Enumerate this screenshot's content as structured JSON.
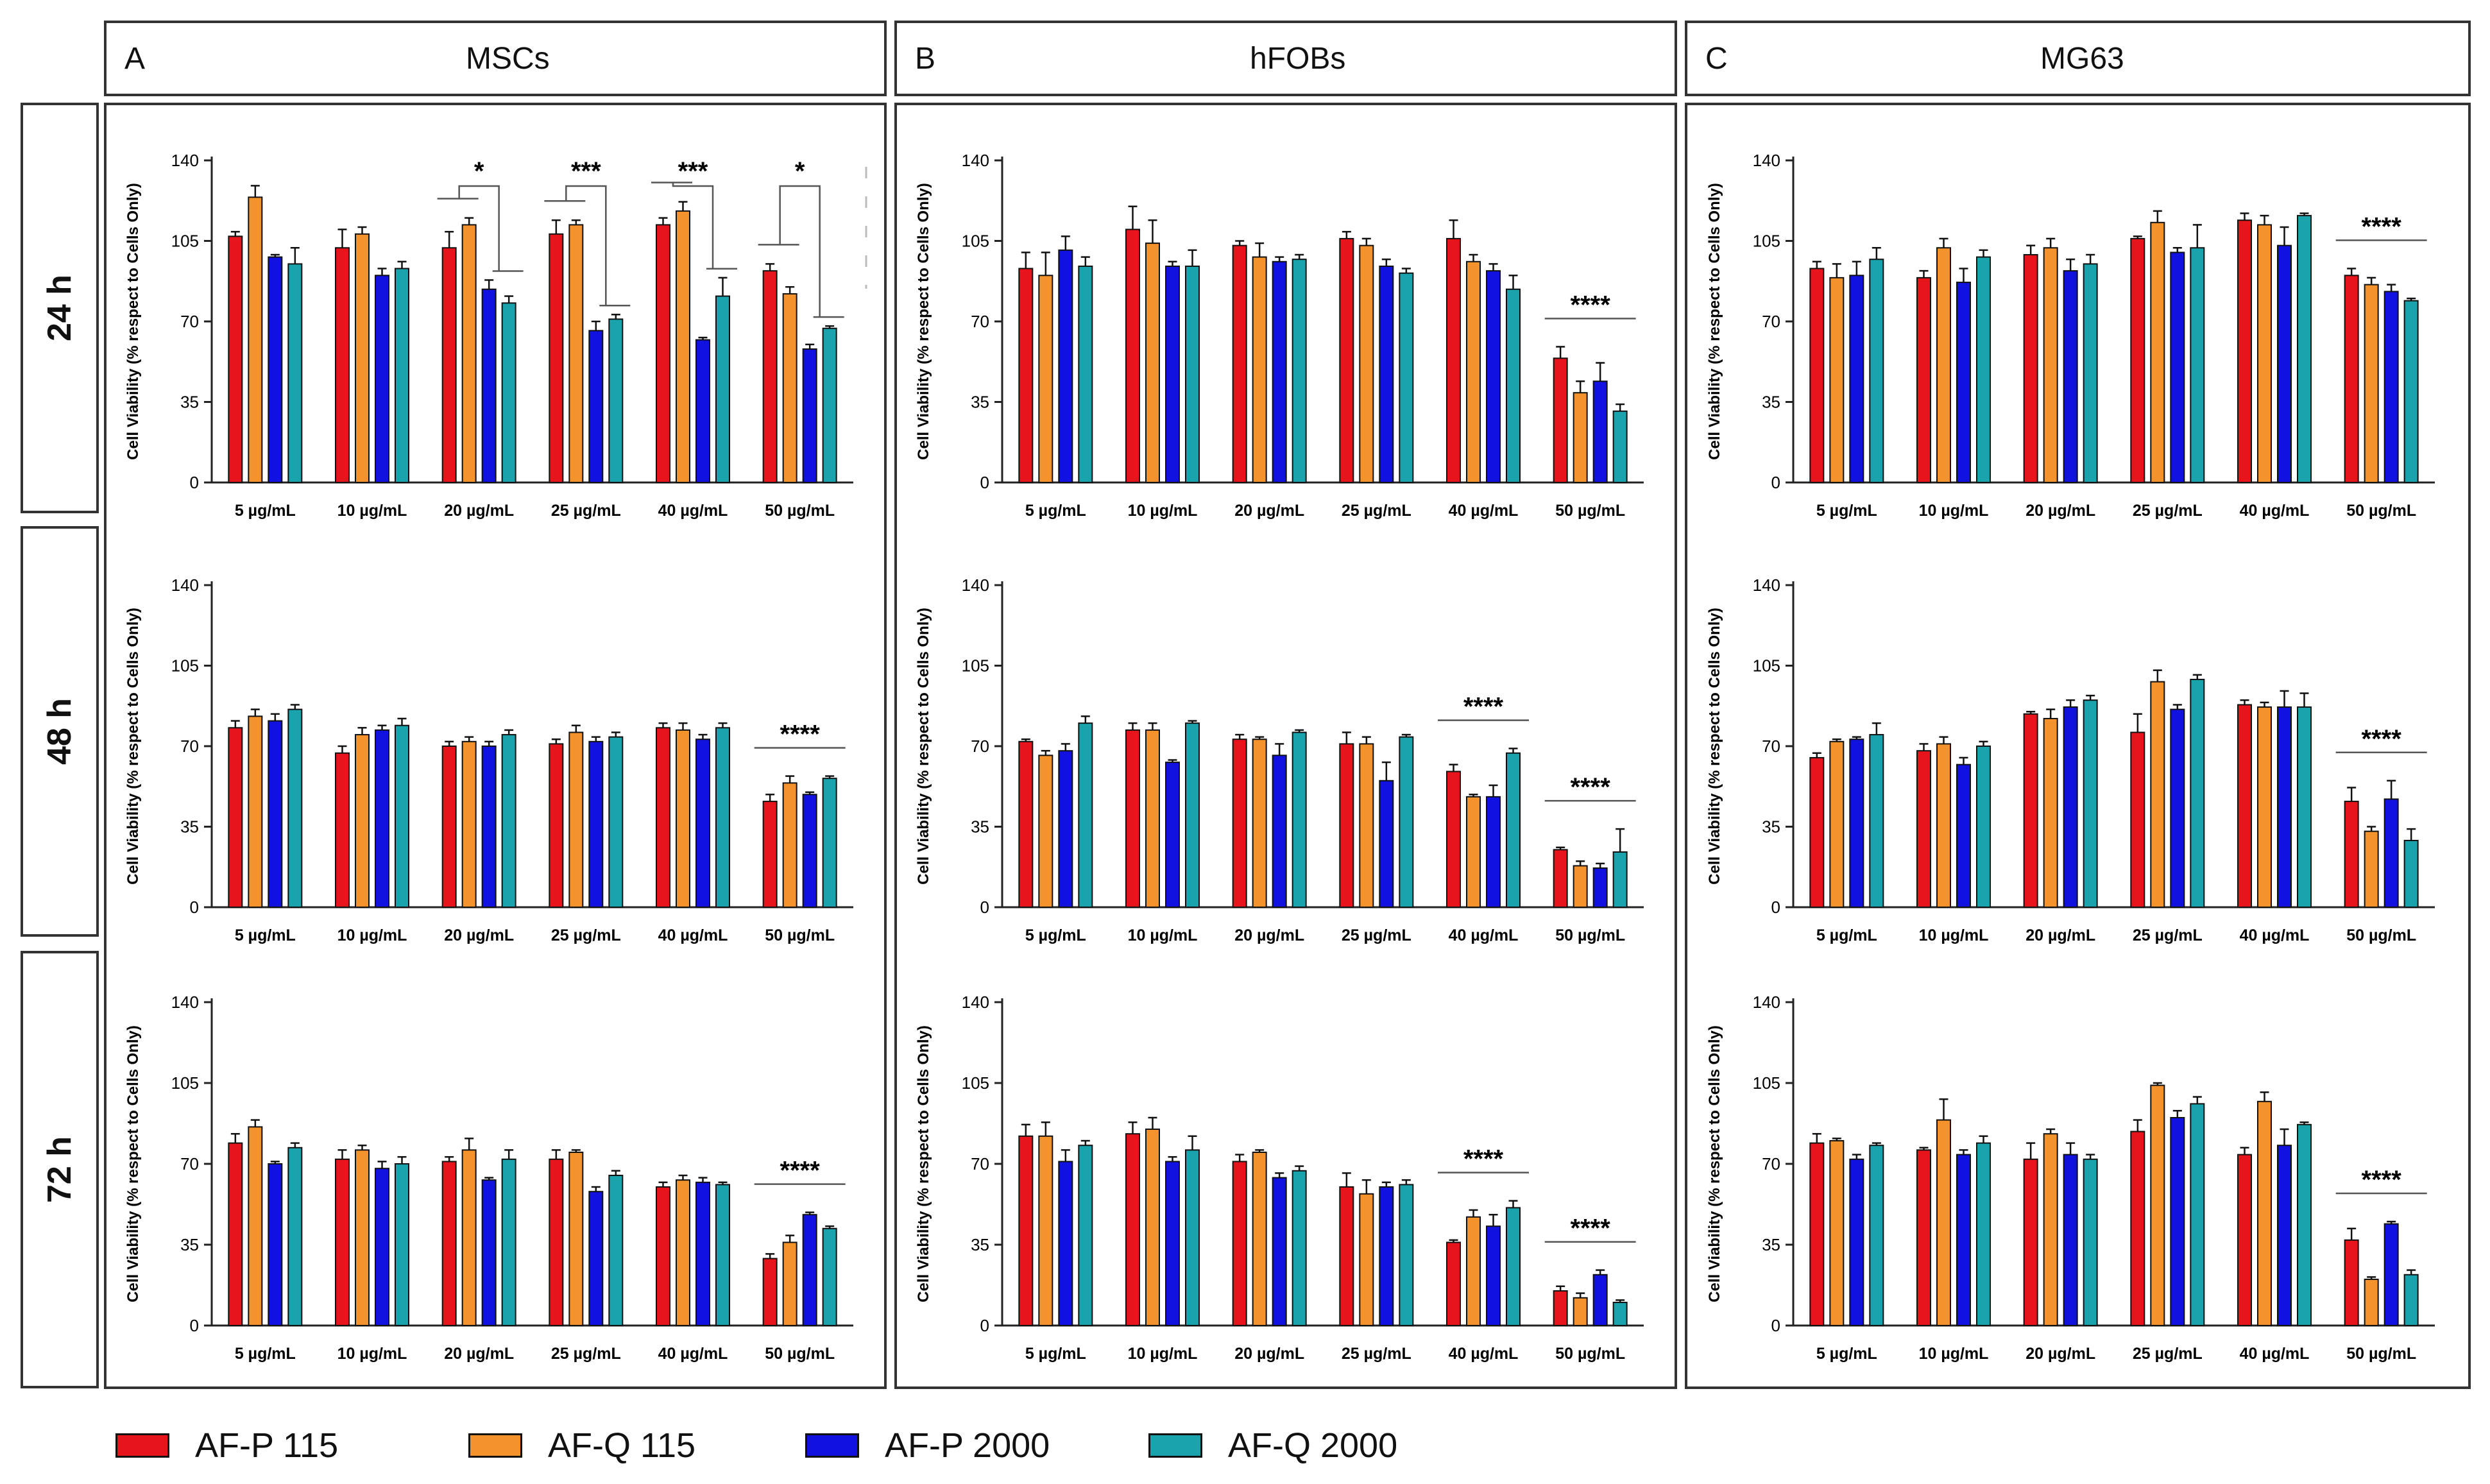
{
  "columns": [
    {
      "letter": "A",
      "title": "MSCs"
    },
    {
      "letter": "B",
      "title": "hFOBs"
    },
    {
      "letter": "C",
      "title": "MG63"
    }
  ],
  "rows": [
    "24 h",
    "48 h",
    "72 h"
  ],
  "legend": [
    {
      "label": "AF-P 115",
      "color": "#e8141c"
    },
    {
      "label": "AF-Q 115",
      "color": "#f4922b"
    },
    {
      "label": "AF-P 2000",
      "color": "#1111e0"
    },
    {
      "label": "AF-Q 2000",
      "color": "#1aa3ad"
    }
  ],
  "chart_data": [
    {
      "type": "bar",
      "id": "A-24",
      "ylabel": "Cell Viability (% respect to Cells Only)",
      "ylim": [
        0,
        140
      ],
      "yticks": [
        0,
        35,
        70,
        105,
        140
      ],
      "categories": [
        "5 µg/mL",
        "10 µg/mL",
        "20 µg/mL",
        "25 µg/mL",
        "40 µg/mL",
        "50 µg/mL"
      ],
      "values": [
        [
          107,
          124,
          98,
          95
        ],
        [
          102,
          108,
          90,
          93
        ],
        [
          102,
          112,
          84,
          78
        ],
        [
          108,
          112,
          66,
          71
        ],
        [
          112,
          118,
          62,
          81
        ],
        [
          92,
          82,
          58,
          67
        ]
      ],
      "errors": [
        [
          2,
          5,
          1,
          7
        ],
        [
          8,
          3,
          3,
          3
        ],
        [
          7,
          3,
          4,
          3
        ],
        [
          6,
          2,
          4,
          2
        ],
        [
          3,
          4,
          1,
          8
        ],
        [
          3,
          3,
          2,
          1
        ]
      ],
      "annotations": [
        {
          "text": "*",
          "group": 2
        },
        {
          "text": "***",
          "group": 3
        },
        {
          "text": "***",
          "group": 4
        },
        {
          "text": "*",
          "group": 5
        }
      ]
    },
    {
      "type": "bar",
      "id": "B-24",
      "ylabel": "Cell Viability (% respect to Cells Only)",
      "ylim": [
        0,
        140
      ],
      "yticks": [
        0,
        35,
        70,
        105,
        140
      ],
      "categories": [
        "5 µg/mL",
        "10 µg/mL",
        "20 µg/mL",
        "25 µg/mL",
        "40 µg/mL",
        "50 µg/mL"
      ],
      "values": [
        [
          93,
          90,
          101,
          94
        ],
        [
          110,
          104,
          94,
          94
        ],
        [
          103,
          98,
          96,
          97
        ],
        [
          106,
          103,
          94,
          91
        ],
        [
          106,
          96,
          92,
          84
        ],
        [
          54,
          39,
          44,
          31
        ]
      ],
      "errors": [
        [
          7,
          10,
          6,
          4
        ],
        [
          10,
          10,
          2,
          7
        ],
        [
          2,
          6,
          2,
          2
        ],
        [
          3,
          3,
          3,
          2
        ],
        [
          8,
          3,
          3,
          6
        ],
        [
          5,
          5,
          8,
          3
        ]
      ],
      "annotations": [
        {
          "text": "****",
          "group": 5
        }
      ]
    },
    {
      "type": "bar",
      "id": "C-24",
      "ylabel": "Cell Viability (% respect to Cells Only)",
      "ylim": [
        0,
        140
      ],
      "yticks": [
        0,
        35,
        70,
        105,
        140
      ],
      "categories": [
        "5 µg/mL",
        "10 µg/mL",
        "20 µg/mL",
        "25 µg/mL",
        "40 µg/mL",
        "50 µg/mL"
      ],
      "values": [
        [
          93,
          89,
          90,
          97
        ],
        [
          89,
          102,
          87,
          98
        ],
        [
          99,
          102,
          92,
          95
        ],
        [
          106,
          113,
          100,
          102
        ],
        [
          114,
          112,
          103,
          116
        ],
        [
          90,
          86,
          83,
          79
        ]
      ],
      "errors": [
        [
          3,
          6,
          6,
          5
        ],
        [
          3,
          4,
          6,
          3
        ],
        [
          4,
          4,
          5,
          4
        ],
        [
          1,
          5,
          2,
          10
        ],
        [
          3,
          4,
          8,
          1
        ],
        [
          3,
          3,
          3,
          1
        ]
      ],
      "annotations": [
        {
          "text": "****",
          "group": 5
        }
      ]
    },
    {
      "type": "bar",
      "id": "A-48",
      "ylabel": "Cell Viability (% respect to Cells Only)",
      "ylim": [
        0,
        140
      ],
      "yticks": [
        0,
        35,
        70,
        105,
        140
      ],
      "categories": [
        "5 µg/mL",
        "10 µg/mL",
        "20 µg/mL",
        "25 µg/mL",
        "40 µg/mL",
        "50 µg/mL"
      ],
      "values": [
        [
          78,
          83,
          81,
          86
        ],
        [
          67,
          75,
          77,
          79
        ],
        [
          70,
          72,
          70,
          75
        ],
        [
          71,
          76,
          72,
          74
        ],
        [
          78,
          77,
          73,
          78
        ],
        [
          46,
          54,
          49,
          56
        ]
      ],
      "errors": [
        [
          3,
          3,
          3,
          2
        ],
        [
          3,
          3,
          2,
          3
        ],
        [
          2,
          2,
          2,
          2
        ],
        [
          2,
          3,
          2,
          2
        ],
        [
          2,
          3,
          2,
          2
        ],
        [
          3,
          3,
          1,
          1
        ]
      ],
      "annotations": [
        {
          "text": "****",
          "group": 5
        }
      ]
    },
    {
      "type": "bar",
      "id": "B-48",
      "ylabel": "Cell Viability (% respect to Cells Only)",
      "ylim": [
        0,
        140
      ],
      "yticks": [
        0,
        35,
        70,
        105,
        140
      ],
      "categories": [
        "5 µg/mL",
        "10 µg/mL",
        "20 µg/mL",
        "25 µg/mL",
        "40 µg/mL",
        "50 µg/mL"
      ],
      "values": [
        [
          72,
          66,
          68,
          80
        ],
        [
          77,
          77,
          63,
          80
        ],
        [
          73,
          73,
          66,
          76
        ],
        [
          71,
          71,
          55,
          74
        ],
        [
          59,
          48,
          48,
          67
        ],
        [
          25,
          18,
          17,
          24
        ]
      ],
      "errors": [
        [
          1,
          2,
          3,
          3
        ],
        [
          3,
          3,
          1,
          1
        ],
        [
          2,
          1,
          5,
          1
        ],
        [
          5,
          3,
          8,
          1
        ],
        [
          3,
          1,
          5,
          2
        ],
        [
          1,
          2,
          2,
          10
        ]
      ],
      "annotations": [
        {
          "text": "****",
          "group": 4
        },
        {
          "text": "****",
          "group": 5
        }
      ]
    },
    {
      "type": "bar",
      "id": "C-48",
      "ylabel": "Cell Viability (% respect to Cells Only)",
      "ylim": [
        0,
        140
      ],
      "yticks": [
        0,
        35,
        70,
        105,
        140
      ],
      "categories": [
        "5 µg/mL",
        "10 µg/mL",
        "20 µg/mL",
        "25 µg/mL",
        "40 µg/mL",
        "50 µg/mL"
      ],
      "values": [
        [
          65,
          72,
          73,
          75
        ],
        [
          68,
          71,
          62,
          70
        ],
        [
          84,
          82,
          87,
          90
        ],
        [
          76,
          98,
          86,
          99
        ],
        [
          88,
          87,
          87,
          87
        ],
        [
          46,
          33,
          47,
          29
        ]
      ],
      "errors": [
        [
          2,
          1,
          1,
          5
        ],
        [
          3,
          3,
          3,
          2
        ],
        [
          1,
          4,
          3,
          2
        ],
        [
          8,
          5,
          2,
          2
        ],
        [
          2,
          2,
          7,
          6
        ],
        [
          6,
          2,
          8,
          5
        ]
      ],
      "annotations": [
        {
          "text": "****",
          "group": 5
        }
      ]
    },
    {
      "type": "bar",
      "id": "A-72",
      "ylabel": "Cell Viability (% respect to Cells Only)",
      "ylim": [
        0,
        140
      ],
      "yticks": [
        0,
        35,
        70,
        105,
        140
      ],
      "categories": [
        "5 µg/mL",
        "10 µg/mL",
        "20 µg/mL",
        "25 µg/mL",
        "40 µg/mL",
        "50 µg/mL"
      ],
      "values": [
        [
          79,
          86,
          70,
          77
        ],
        [
          72,
          76,
          68,
          70
        ],
        [
          71,
          76,
          63,
          72
        ],
        [
          72,
          75,
          58,
          65
        ],
        [
          60,
          63,
          62,
          61
        ],
        [
          29,
          36,
          48,
          42
        ]
      ],
      "errors": [
        [
          4,
          3,
          1,
          2
        ],
        [
          4,
          2,
          3,
          3
        ],
        [
          2,
          5,
          1,
          4
        ],
        [
          4,
          1,
          2,
          2
        ],
        [
          2,
          2,
          2,
          1
        ],
        [
          2,
          3,
          1,
          1
        ]
      ],
      "annotations": [
        {
          "text": "****",
          "group": 5
        }
      ]
    },
    {
      "type": "bar",
      "id": "B-72",
      "ylabel": "Cell Viability (% respect to Cells Only)",
      "ylim": [
        0,
        140
      ],
      "yticks": [
        0,
        35,
        70,
        105,
        140
      ],
      "categories": [
        "5 µg/mL",
        "10 µg/mL",
        "20 µg/mL",
        "25 µg/mL",
        "40 µg/mL",
        "50 µg/mL"
      ],
      "values": [
        [
          82,
          82,
          71,
          78
        ],
        [
          83,
          85,
          71,
          76
        ],
        [
          71,
          75,
          64,
          67
        ],
        [
          60,
          57,
          60,
          61
        ],
        [
          36,
          47,
          43,
          51
        ],
        [
          15,
          12,
          22,
          10
        ]
      ],
      "errors": [
        [
          5,
          6,
          5,
          2
        ],
        [
          5,
          5,
          2,
          6
        ],
        [
          3,
          1,
          2,
          2
        ],
        [
          6,
          6,
          2,
          2
        ],
        [
          1,
          3,
          5,
          3
        ],
        [
          2,
          2,
          2,
          1
        ]
      ],
      "annotations": [
        {
          "text": "****",
          "group": 4
        },
        {
          "text": "****",
          "group": 5
        }
      ]
    },
    {
      "type": "bar",
      "id": "C-72",
      "ylabel": "Cell Viability (% respect to Cells Only)",
      "ylim": [
        0,
        140
      ],
      "yticks": [
        0,
        35,
        70,
        105,
        140
      ],
      "categories": [
        "5 µg/mL",
        "10 µg/mL",
        "20 µg/mL",
        "25 µg/mL",
        "40 µg/mL",
        "50 µg/mL"
      ],
      "values": [
        [
          79,
          80,
          72,
          78
        ],
        [
          76,
          89,
          74,
          79
        ],
        [
          72,
          83,
          74,
          72
        ],
        [
          84,
          104,
          90,
          96
        ],
        [
          74,
          97,
          78,
          87
        ],
        [
          37,
          20,
          44,
          22
        ]
      ],
      "errors": [
        [
          4,
          1,
          2,
          1
        ],
        [
          1,
          9,
          2,
          3
        ],
        [
          7,
          2,
          5,
          2
        ],
        [
          5,
          1,
          3,
          3
        ],
        [
          3,
          4,
          7,
          1
        ],
        [
          5,
          1,
          1,
          2
        ]
      ],
      "annotations": [
        {
          "text": "****",
          "group": 5
        }
      ]
    }
  ]
}
